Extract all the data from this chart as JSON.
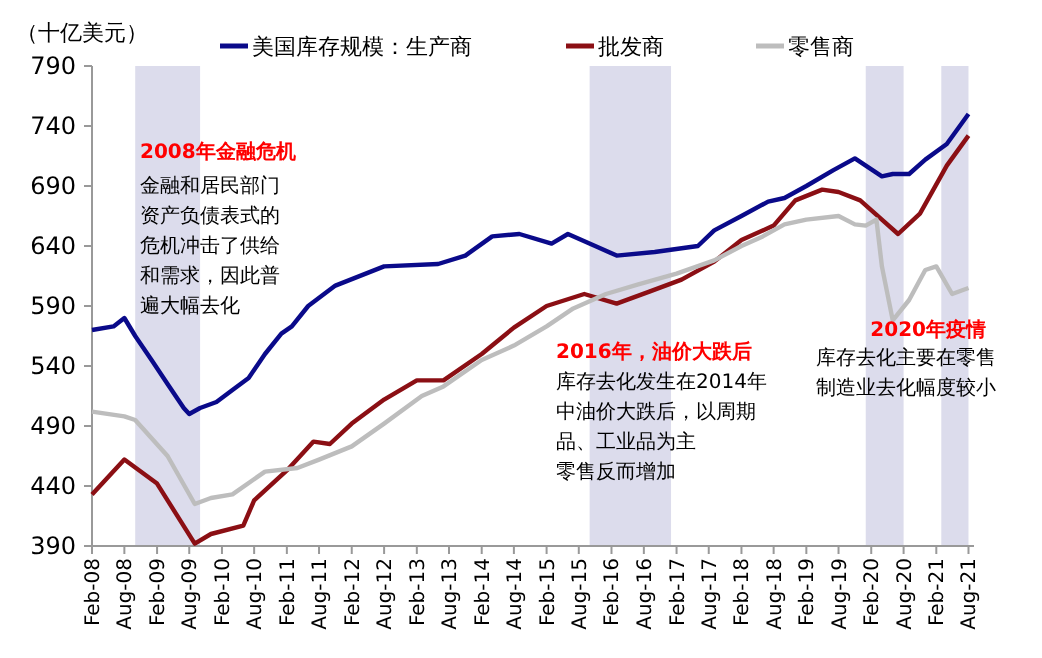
{
  "chart_data": {
    "type": "line",
    "ylabel": "（十亿美元）",
    "legend": "top",
    "grid": false,
    "xlim": [
      "2008-02",
      "2021-09"
    ],
    "ylim": [
      390,
      790
    ],
    "yticks": [
      390,
      440,
      490,
      540,
      590,
      640,
      690,
      740,
      790
    ],
    "xticks": [
      {
        "value": "2008-02",
        "label": "Feb-08"
      },
      {
        "value": "2008-08",
        "label": "Aug-08"
      },
      {
        "value": "2009-02",
        "label": "Feb-09"
      },
      {
        "value": "2009-08",
        "label": "Aug-09"
      },
      {
        "value": "2010-02",
        "label": "Feb-10"
      },
      {
        "value": "2010-08",
        "label": "Aug-10"
      },
      {
        "value": "2011-02",
        "label": "Feb-11"
      },
      {
        "value": "2011-08",
        "label": "Aug-11"
      },
      {
        "value": "2012-02",
        "label": "Feb-12"
      },
      {
        "value": "2012-08",
        "label": "Aug-12"
      },
      {
        "value": "2013-02",
        "label": "Feb-13"
      },
      {
        "value": "2013-08",
        "label": "Aug-13"
      },
      {
        "value": "2014-02",
        "label": "Feb-14"
      },
      {
        "value": "2014-08",
        "label": "Aug-14"
      },
      {
        "value": "2015-02",
        "label": "Feb-15"
      },
      {
        "value": "2015-08",
        "label": "Aug-15"
      },
      {
        "value": "2016-02",
        "label": "Feb-16"
      },
      {
        "value": "2016-08",
        "label": "Aug-16"
      },
      {
        "value": "2017-02",
        "label": "Feb-17"
      },
      {
        "value": "2017-08",
        "label": "Aug-17"
      },
      {
        "value": "2018-02",
        "label": "Feb-18"
      },
      {
        "value": "2018-08",
        "label": "Aug-18"
      },
      {
        "value": "2019-02",
        "label": "Feb-19"
      },
      {
        "value": "2019-08",
        "label": "Aug-19"
      },
      {
        "value": "2020-02",
        "label": "Feb-20"
      },
      {
        "value": "2020-08",
        "label": "Aug-20"
      },
      {
        "value": "2021-02",
        "label": "Feb-21"
      },
      {
        "value": "2021-08",
        "label": "Aug-21"
      }
    ],
    "bands": [
      {
        "axis": "x",
        "from": "2008-10",
        "to": "2009-10",
        "color": "#dcdcec"
      },
      {
        "axis": "x",
        "from": "2015-10",
        "to": "2017-01",
        "color": "#dcdcec"
      },
      {
        "axis": "x",
        "from": "2020-01",
        "to": "2020-08",
        "color": "#dcdcec"
      },
      {
        "axis": "x",
        "from": "2021-03",
        "to": "2021-08",
        "color": "#dcdcec"
      }
    ],
    "series": [
      {
        "name": "美国库存规模：生产商",
        "color": "#0a0a8a",
        "x": [
          "2008-02",
          "2008-06",
          "2008-08",
          "2008-10",
          "2009-01",
          "2009-04",
          "2009-07",
          "2009-08",
          "2009-10",
          "2010-01",
          "2010-04",
          "2010-07",
          "2010-10",
          "2011-01",
          "2011-03",
          "2011-06",
          "2011-11",
          "2012-08",
          "2013-06",
          "2013-11",
          "2014-04",
          "2014-09",
          "2015-03",
          "2015-06",
          "2015-11",
          "2016-03",
          "2016-10",
          "2017-06",
          "2017-09",
          "2018-02",
          "2018-07",
          "2018-10",
          "2019-02",
          "2019-07",
          "2019-11",
          "2020-04",
          "2020-06",
          "2020-09",
          "2020-12",
          "2021-04",
          "2021-08"
        ],
        "values": [
          570,
          573,
          580,
          565,
          545,
          525,
          505,
          500,
          505,
          510,
          520,
          530,
          550,
          567,
          573,
          590,
          607,
          623,
          625,
          632,
          648,
          650,
          642,
          650,
          640,
          632,
          635,
          640,
          653,
          665,
          677,
          680,
          690,
          703,
          713,
          698,
          700,
          700,
          712,
          725,
          750
        ]
      },
      {
        "name": "批发商",
        "color": "#8b0f14",
        "x": [
          "2008-02",
          "2008-08",
          "2009-02",
          "2009-09",
          "2009-12",
          "2010-06",
          "2010-08",
          "2011-02",
          "2011-07",
          "2011-10",
          "2012-02",
          "2012-08",
          "2013-02",
          "2013-07",
          "2014-02",
          "2014-08",
          "2015-02",
          "2015-09",
          "2016-03",
          "2016-09",
          "2017-03",
          "2017-09",
          "2018-02",
          "2018-08",
          "2018-12",
          "2019-05",
          "2019-08",
          "2019-12",
          "2020-04",
          "2020-07",
          "2020-11",
          "2021-04",
          "2021-08"
        ],
        "values": [
          433,
          462,
          442,
          392,
          400,
          407,
          428,
          453,
          477,
          475,
          492,
          512,
          528,
          528,
          550,
          572,
          590,
          600,
          592,
          602,
          612,
          627,
          645,
          657,
          678,
          687,
          685,
          678,
          662,
          650,
          667,
          707,
          732
        ]
      },
      {
        "name": "零售商",
        "color": "#bdbdbd",
        "x": [
          "2008-02",
          "2008-08",
          "2008-10",
          "2009-04",
          "2009-09",
          "2009-12",
          "2010-04",
          "2010-10",
          "2011-04",
          "2011-08",
          "2012-02",
          "2012-08",
          "2013-03",
          "2013-07",
          "2014-02",
          "2014-08",
          "2015-02",
          "2015-07",
          "2016-01",
          "2016-07",
          "2017-02",
          "2017-09",
          "2018-02",
          "2018-06",
          "2018-10",
          "2019-02",
          "2019-08",
          "2019-11",
          "2020-01",
          "2020-03",
          "2020-04",
          "2020-06",
          "2020-09",
          "2020-12",
          "2021-02",
          "2021-05",
          "2021-08"
        ],
        "values": [
          502,
          498,
          495,
          465,
          425,
          430,
          433,
          452,
          455,
          462,
          473,
          492,
          515,
          523,
          545,
          557,
          573,
          588,
          600,
          608,
          617,
          628,
          640,
          648,
          658,
          662,
          665,
          658,
          657,
          662,
          623,
          578,
          595,
          620,
          623,
          600,
          605
        ]
      }
    ],
    "annotations": [
      "2008年金融危机",
      "金融和居民部门资产负债表式的危机冲击了供给和需求，因此普遍大幅去化",
      "2016年，油价大跌后",
      "库存去化发生在2014年中油价大跌后，以周期品、工业品为主零售反而增加",
      "2020年疫情",
      "库存去化主要在零售制造业去化幅度较小"
    ]
  }
}
